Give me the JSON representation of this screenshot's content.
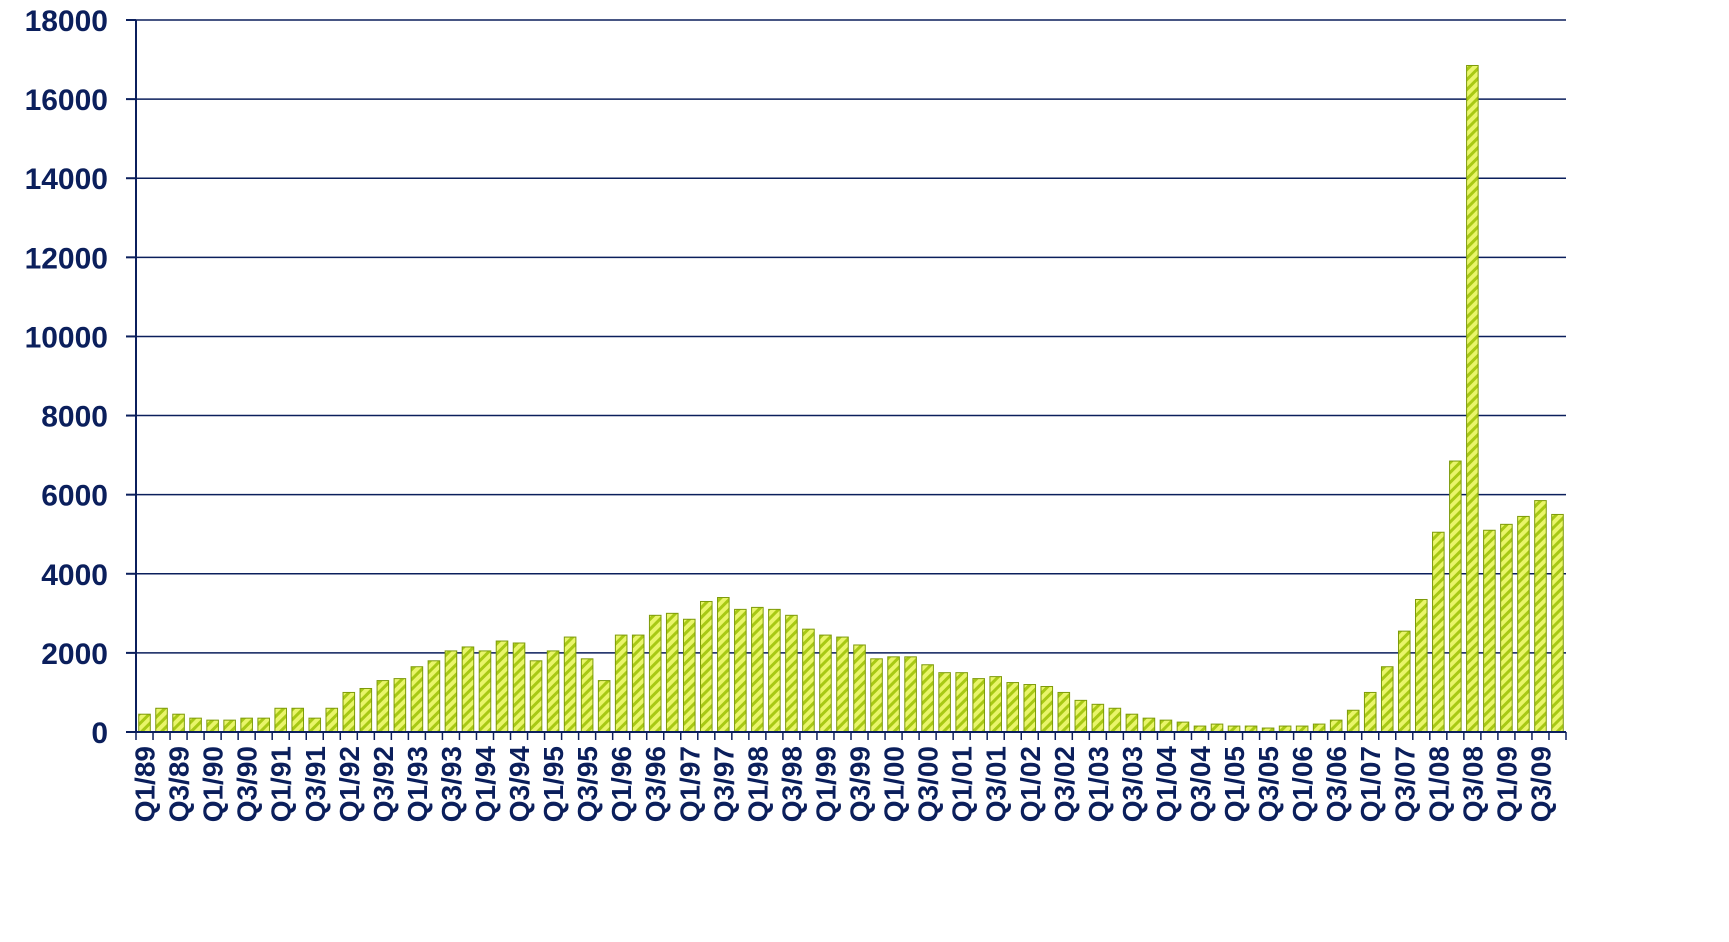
{
  "chart_data": {
    "type": "bar",
    "title": "",
    "xlabel": "",
    "ylabel": "",
    "ylim": [
      0,
      18000
    ],
    "yticks": [
      0,
      2000,
      4000,
      6000,
      8000,
      10000,
      12000,
      14000,
      16000,
      18000
    ],
    "grid": true,
    "legend": "none",
    "colors": {
      "bar_fill": "#e9f56a",
      "bar_stripe": "#9bbf12",
      "bar_edge": "#7d9a0a",
      "axis": "#0b1f5c",
      "grid": "#0b1f5c",
      "text": "#0b1f5c"
    },
    "categories": [
      "Q1/89",
      "Q2/89",
      "Q3/89",
      "Q4/89",
      "Q1/90",
      "Q2/90",
      "Q3/90",
      "Q4/90",
      "Q1/91",
      "Q2/91",
      "Q3/91",
      "Q4/91",
      "Q1/92",
      "Q2/92",
      "Q3/92",
      "Q4/92",
      "Q1/93",
      "Q2/93",
      "Q3/93",
      "Q4/93",
      "Q1/94",
      "Q2/94",
      "Q3/94",
      "Q4/94",
      "Q1/95",
      "Q2/95",
      "Q3/95",
      "Q4/95",
      "Q1/96",
      "Q2/96",
      "Q3/96",
      "Q4/96",
      "Q1/97",
      "Q2/97",
      "Q3/97",
      "Q4/97",
      "Q1/98",
      "Q2/98",
      "Q3/98",
      "Q4/98",
      "Q1/99",
      "Q2/99",
      "Q3/99",
      "Q4/99",
      "Q1/00",
      "Q2/00",
      "Q3/00",
      "Q4/00",
      "Q1/01",
      "Q2/01",
      "Q3/01",
      "Q4/01",
      "Q1/02",
      "Q2/02",
      "Q3/02",
      "Q4/02",
      "Q1/03",
      "Q2/03",
      "Q3/03",
      "Q4/03",
      "Q1/04",
      "Q2/04",
      "Q3/04",
      "Q4/04",
      "Q1/05",
      "Q2/05",
      "Q3/05",
      "Q4/05",
      "Q1/06",
      "Q2/06",
      "Q3/06",
      "Q4/06",
      "Q1/07",
      "Q2/07",
      "Q3/07",
      "Q4/07",
      "Q1/08",
      "Q2/08",
      "Q3/08",
      "Q4/08",
      "Q1/09",
      "Q2/09",
      "Q3/09",
      "Q4/09"
    ],
    "xtick_labels": [
      "Q1/89",
      "Q3/89",
      "Q1/90",
      "Q3/90",
      "Q1/91",
      "Q3/91",
      "Q1/92",
      "Q3/92",
      "Q1/93",
      "Q3/93",
      "Q1/94",
      "Q3/94",
      "Q1/95",
      "Q3/95",
      "Q1/96",
      "Q3/96",
      "Q1/97",
      "Q3/97",
      "Q1/98",
      "Q3/98",
      "Q1/99",
      "Q3/99",
      "Q1/00",
      "Q3/00",
      "Q1/01",
      "Q3/01",
      "Q1/02",
      "Q3/02",
      "Q1/03",
      "Q3/03",
      "Q1/04",
      "Q3/04",
      "Q1/05",
      "Q3/05",
      "Q1/06",
      "Q3/06",
      "Q1/07",
      "Q3/07",
      "Q1/08",
      "Q3/08",
      "Q1/09",
      "Q3/09"
    ],
    "values": [
      450,
      600,
      450,
      350,
      300,
      300,
      350,
      350,
      600,
      600,
      350,
      600,
      1000,
      1100,
      1300,
      1350,
      1650,
      1800,
      2050,
      2150,
      2050,
      2300,
      2250,
      1800,
      2050,
      2400,
      1850,
      1300,
      2450,
      2450,
      2950,
      3000,
      2850,
      3300,
      3400,
      3100,
      3150,
      3100,
      2950,
      2600,
      2450,
      2400,
      2200,
      1850,
      1900,
      1900,
      1700,
      1500,
      1500,
      1350,
      1400,
      1250,
      1200,
      1150,
      1000,
      800,
      700,
      600,
      450,
      350,
      300,
      250,
      150,
      200,
      150,
      150,
      100,
      150,
      150,
      200,
      300,
      550,
      1000,
      1650,
      2550,
      3350,
      5050,
      6850,
      16850,
      5100,
      5250,
      5450,
      5850,
      5500
    ]
  }
}
